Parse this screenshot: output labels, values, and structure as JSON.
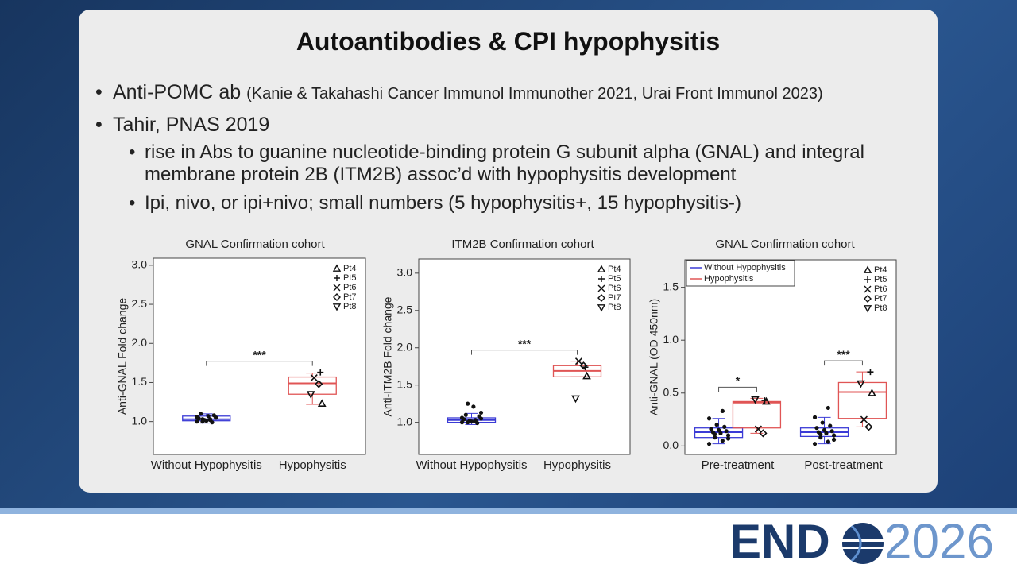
{
  "slide": {
    "title": "Autoantibodies & CPI hypophysitis",
    "bullets": [
      {
        "text": "Anti-POMC ab",
        "note": "(Kanie & Takahashi Cancer Immunol Immunother 2021, Urai Front Immunol 2023)"
      },
      {
        "text": "Tahir, PNAS 2019",
        "sub": [
          "rise in Abs to guanine nucleotide-binding protein G subunit alpha (GNAL) and integral membrane protein 2B (ITM2B) assoc’d with hypophysitis development",
          "Ipi, nivo, or ipi+nivo; small numbers (5 hypophysitis+, 15 hypophysitis-)"
        ]
      }
    ]
  },
  "logo": {
    "left": "END",
    "right": "2026"
  },
  "chart_data": [
    {
      "type": "box",
      "title": "GNAL Confirmation cohort",
      "y_label": "Anti-GNAL Fold change",
      "categories": [
        "Without Hypophysitis",
        "Hypophysitis"
      ],
      "ylim": [
        0.58,
        3.09
      ],
      "yticks": [
        {
          "value": 1,
          "label": "1.0"
        },
        {
          "value": 1.5,
          "label": "1.5"
        },
        {
          "value": 2,
          "label": "2.0"
        },
        {
          "value": 2.5,
          "label": "2.5"
        },
        {
          "value": 3,
          "label": "3.0"
        }
      ],
      "patients": [
        "Pt4",
        "Pt5",
        "Pt6",
        "Pt7",
        "Pt8"
      ],
      "patient_symbols": [
        "triangle",
        "plus",
        "x",
        "diamond",
        "inv-triangle"
      ],
      "series": [
        {
          "color": "#3b3bd6",
          "boxes": [
            {
              "min": 0.98,
              "q1": 1.01,
              "median": 1.03,
              "q3": 1.07,
              "max": 1.1,
              "points": [
                1.0,
                1.02,
                1.03,
                1.05,
                1.07,
                1.1,
                1.08,
                1.01,
                1.04,
                0.99,
                1.02,
                1.06,
                1.03,
                1.0,
                1.05
              ]
            },
            null
          ]
        },
        {
          "color": "#e05555",
          "boxes": [
            null,
            {
              "min": 1.22,
              "q1": 1.35,
              "median": 1.49,
              "q3": 1.57,
              "max": 1.62,
              "patients": [
                1.23,
                1.63,
                1.56,
                1.48,
                1.35
              ]
            }
          ]
        }
      ],
      "annotations": [
        "***"
      ]
    },
    {
      "type": "box",
      "title": "ITM2B Confirmation cohort",
      "y_label": "Anti-ITM2B Fold change",
      "categories": [
        "Without Hypophysitis",
        "Hypophysitis"
      ],
      "ylim": [
        0.57,
        3.19
      ],
      "yticks": [
        {
          "value": 1,
          "label": "1.0"
        },
        {
          "value": 1.5,
          "label": "1.5"
        },
        {
          "value": 2,
          "label": "2.0"
        },
        {
          "value": 2.5,
          "label": "2.5"
        },
        {
          "value": 3,
          "label": "3.0"
        }
      ],
      "patients": [
        "Pt4",
        "Pt5",
        "Pt6",
        "Pt7",
        "Pt8"
      ],
      "patient_symbols": [
        "triangle",
        "plus",
        "x",
        "diamond",
        "inv-triangle"
      ],
      "series": [
        {
          "color": "#3b3bd6",
          "boxes": [
            {
              "min": 0.97,
              "q1": 1.0,
              "median": 1.03,
              "q3": 1.06,
              "max": 1.12,
              "points": [
                1.0,
                1.02,
                1.25,
                1.05,
                1.21,
                1.1,
                1.08,
                1.01,
                1.04,
                0.99,
                1.02,
                1.06,
                1.03,
                1.0,
                1.13
              ]
            },
            null
          ]
        },
        {
          "color": "#e05555",
          "boxes": [
            null,
            {
              "min": 1.61,
              "q1": 1.61,
              "median": 1.69,
              "q3": 1.76,
              "max": 1.82,
              "patients": [
                1.62,
                1.74,
                1.82,
                1.76,
                1.32
              ]
            }
          ]
        }
      ],
      "annotations": [
        "***"
      ]
    },
    {
      "type": "box",
      "title": "GNAL Confirmation cohort",
      "y_label": "Anti-GNAL (OD 450nm)",
      "categories": [
        "Pre-treatment",
        "Post-treatment"
      ],
      "ylim": [
        -0.08,
        1.76
      ],
      "yticks": [
        {
          "value": 0,
          "label": "0.0"
        },
        {
          "value": 0.5,
          "label": "0.5"
        },
        {
          "value": 1,
          "label": "1.0"
        },
        {
          "value": 1.5,
          "label": "1.5"
        }
      ],
      "patients": [
        "Pt4",
        "Pt5",
        "Pt6",
        "Pt7",
        "Pt8"
      ],
      "patient_symbols": [
        "triangle",
        "plus",
        "x",
        "diamond",
        "inv-triangle"
      ],
      "series": [
        {
          "name": "Without Hypophysitis",
          "color": "#3b3bd6",
          "boxes": [
            {
              "min": 0.02,
              "q1": 0.08,
              "median": 0.13,
              "q3": 0.17,
              "max": 0.26,
              "points": [
                0.02,
                0.05,
                0.08,
                0.1,
                0.12,
                0.13,
                0.14,
                0.15,
                0.16,
                0.18,
                0.2,
                0.26,
                0.33,
                0.11,
                0.07
              ]
            },
            {
              "min": 0.02,
              "q1": 0.09,
              "median": 0.13,
              "q3": 0.17,
              "max": 0.27,
              "points": [
                0.02,
                0.04,
                0.08,
                0.1,
                0.12,
                0.13,
                0.14,
                0.15,
                0.17,
                0.19,
                0.22,
                0.27,
                0.36,
                0.11,
                0.06
              ]
            }
          ]
        },
        {
          "name": "Hypophysitis",
          "color": "#e05555",
          "boxes": [
            {
              "min": 0.12,
              "q1": 0.17,
              "median": 0.41,
              "q3": 0.42,
              "max": 0.45,
              "patients": [
                0.42,
                0.43,
                0.16,
                0.12,
                0.44
              ]
            },
            {
              "min": 0.18,
              "q1": 0.26,
              "median": 0.51,
              "q3": 0.6,
              "max": 0.7,
              "patients": [
                0.5,
                0.7,
                0.25,
                0.18,
                0.59
              ]
            }
          ]
        }
      ],
      "annotations": [
        "*",
        "***"
      ]
    }
  ]
}
